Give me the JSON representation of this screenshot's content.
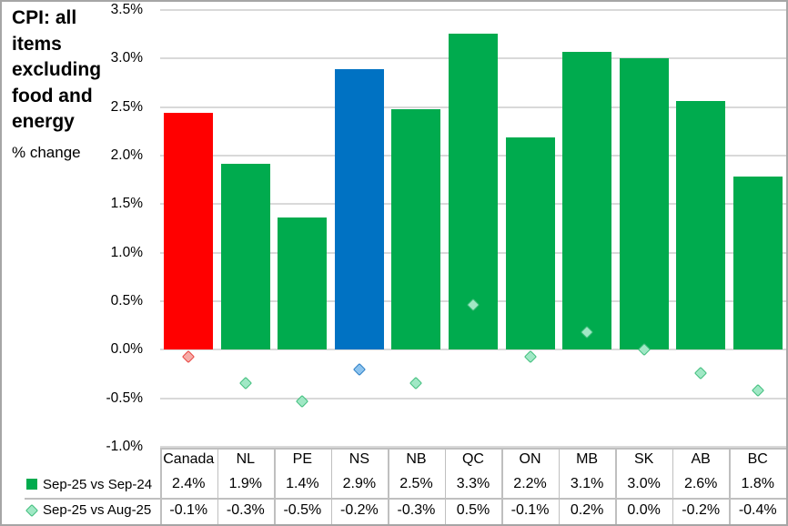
{
  "chart_data": {
    "type": "bar",
    "title": "CPI: all items excluding food and energy",
    "subtitle": "% change",
    "categories": [
      "Canada",
      "NL",
      "PE",
      "NS",
      "NB",
      "QC",
      "ON",
      "MB",
      "SK",
      "AB",
      "BC"
    ],
    "series": [
      {
        "name": "Sep-25 vs Sep-24",
        "type": "bar",
        "legend_marker": "filled-square",
        "values": [
          2.4,
          1.9,
          1.4,
          2.9,
          2.5,
          3.3,
          2.2,
          3.1,
          3.0,
          2.6,
          1.8
        ],
        "labels": [
          "2.4%",
          "1.9%",
          "1.4%",
          "2.9%",
          "2.5%",
          "3.3%",
          "2.2%",
          "3.1%",
          "3.0%",
          "2.6%",
          "1.8%"
        ],
        "plotted_values": [
          2.44,
          1.92,
          1.36,
          2.89,
          2.48,
          3.26,
          2.19,
          3.07,
          3.0,
          2.56,
          1.78
        ]
      },
      {
        "name": "Sep-25 vs Aug-25",
        "type": "scatter",
        "marker": "diamond",
        "legend_marker": "diamond-outline",
        "values": [
          -0.1,
          -0.3,
          -0.5,
          -0.2,
          -0.3,
          0.5,
          -0.1,
          0.2,
          0.0,
          -0.2,
          -0.4
        ],
        "labels": [
          "-0.1%",
          "-0.3%",
          "-0.5%",
          "-0.2%",
          "-0.3%",
          "0.5%",
          "-0.1%",
          "0.2%",
          "0.0%",
          "-0.2%",
          "-0.4%"
        ],
        "plotted_values": [
          -0.07,
          -0.34,
          -0.53,
          -0.2,
          -0.34,
          0.46,
          -0.07,
          0.18,
          0.0,
          -0.24,
          -0.42
        ]
      }
    ],
    "y_axis": {
      "ylim": [
        -1.0,
        3.5
      ],
      "step": 0.5,
      "grid": true,
      "ticks": [
        {
          "value": 3.5,
          "label": "3.5%"
        },
        {
          "value": 3.0,
          "label": "3.0%"
        },
        {
          "value": 2.5,
          "label": "2.5%"
        },
        {
          "value": 2.0,
          "label": "2.0%"
        },
        {
          "value": 1.5,
          "label": "1.5%"
        },
        {
          "value": 1.0,
          "label": "1.0%"
        },
        {
          "value": 0.5,
          "label": "0.5%"
        },
        {
          "value": 0.0,
          "label": "0.0%"
        },
        {
          "value": -0.5,
          "label": "-0.5%"
        },
        {
          "value": -1.0,
          "label": "-1.0%"
        }
      ]
    },
    "legend_position": "bottom-left",
    "colors": {
      "bar_default": "#00AB4E",
      "bar_overrides": {
        "Canada": "#FF0000",
        "NS": "#0072C3"
      },
      "marker_default": {
        "fill": "#A0E8C5",
        "border": "#3EBD7B"
      },
      "marker_overrides": {
        "Canada": {
          "fill": "#F6ACA8",
          "border": "#E8433E"
        },
        "NS": {
          "fill": "#8EC4EF",
          "border": "#2A7DC4"
        }
      },
      "gridline": "#D9D9D9",
      "table_border": "#BFBFBF",
      "outer_border": "#A6A6A6",
      "text": "#000000"
    }
  }
}
